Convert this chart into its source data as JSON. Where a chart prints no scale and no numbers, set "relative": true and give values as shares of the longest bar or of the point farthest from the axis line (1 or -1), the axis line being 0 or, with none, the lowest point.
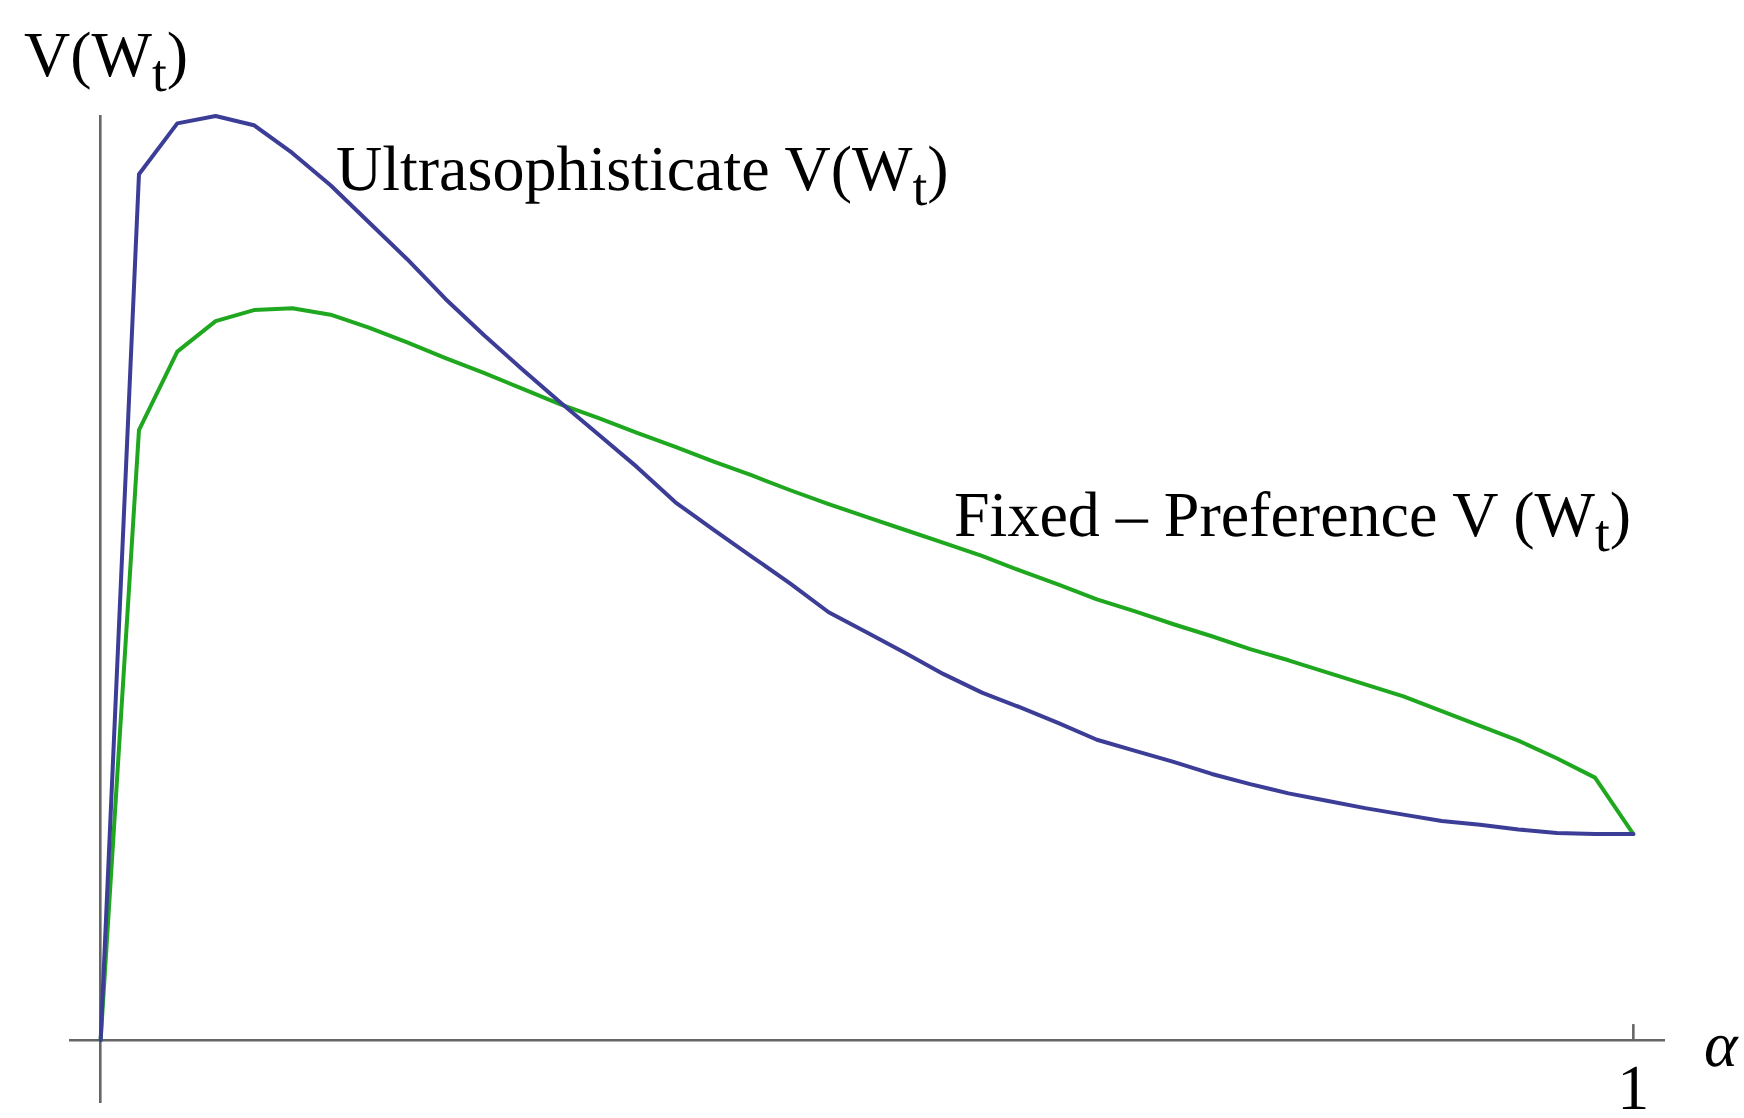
{
  "chart_data": {
    "type": "line",
    "ylabel": "V(W$_{t}$)",
    "xlabel": "α",
    "relative": true,
    "annotations": [
      "1"
    ],
    "categories": [
      null,
      null,
      null,
      null,
      null,
      null,
      null,
      null,
      null,
      null,
      null,
      null,
      null,
      null,
      null,
      null,
      null,
      null,
      null,
      null,
      null,
      null,
      null,
      null,
      null,
      null,
      null,
      null,
      null,
      null,
      null,
      null,
      null,
      null,
      null,
      null,
      null,
      null,
      null,
      null,
      null
    ],
    "series": [
      {
        "name": "Ultrasophisticate V(W$_{t}$)",
        "color": "#3b3d96",
        "values": [
          0,
          0.937,
          0.992,
          1,
          0.99,
          0.96,
          0.925,
          0.885,
          0.845,
          0.802,
          0.763,
          0.726,
          0.69,
          0.655,
          0.62,
          0.582,
          0.552,
          0.523,
          0.494,
          0.463,
          0.441,
          0.419,
          0.396,
          0.376,
          0.36,
          0.343,
          0.325,
          0.313,
          0.301,
          0.288,
          0.277,
          0.267,
          0.259,
          0.251,
          0.244,
          0.237,
          0.233,
          0.228,
          0.224,
          0.223,
          0.223
        ]
      },
      {
        "name": "Fixed – Preference V (W$_{t}$)",
        "color": "#1fa81f",
        "values": [
          0,
          0.66,
          0.745,
          0.778,
          0.79,
          0.792,
          0.785,
          0.771,
          0.755,
          0.738,
          0.722,
          0.705,
          0.688,
          0.673,
          0.657,
          0.642,
          0.626,
          0.611,
          0.595,
          0.58,
          0.566,
          0.552,
          0.538,
          0.524,
          0.508,
          0.493,
          0.477,
          0.464,
          0.45,
          0.437,
          0.423,
          0.411,
          0.398,
          0.385,
          0.372,
          0.356,
          0.34,
          0.324,
          0.305,
          0.284,
          0.223
        ]
      }
    ]
  }
}
